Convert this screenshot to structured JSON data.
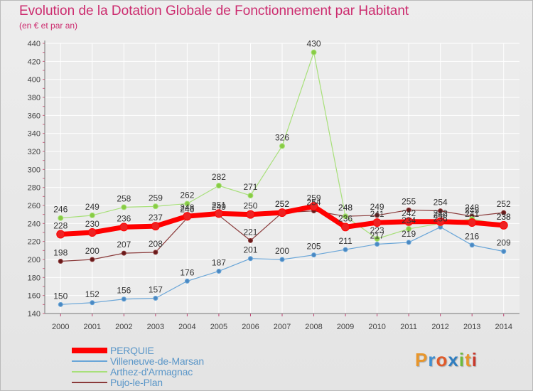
{
  "header": {
    "title": "Evolution de la Dotation Globale de Fonctionnement par Habitant",
    "subtitle": "(en € et par an)"
  },
  "logo": {
    "text": "Proxiti"
  },
  "chart_data": {
    "type": "line",
    "title": "Evolution de la Dotation Globale de Fonctionnement par Habitant",
    "subtitle": "(en € et par an)",
    "xlabel": "",
    "ylabel": "",
    "x": [
      2000,
      2001,
      2002,
      2003,
      2004,
      2005,
      2006,
      2007,
      2008,
      2009,
      2010,
      2011,
      2012,
      2013,
      2014
    ],
    "ylim": [
      140,
      440
    ],
    "yticks": [
      140,
      160,
      180,
      200,
      220,
      240,
      260,
      280,
      300,
      320,
      340,
      360,
      380,
      400,
      420,
      440
    ],
    "grid": true,
    "legend": "bottom-left",
    "series": [
      {
        "name": "PERQUIE",
        "color": "#ff0000",
        "values": [
          228,
          230,
          236,
          237,
          248,
          251,
          250,
          252,
          259,
          236,
          241,
          242,
          242,
          241,
          238
        ],
        "labels": [
          "228",
          "230",
          "236",
          "237",
          "248",
          "251",
          "250",
          "252",
          "259",
          "236",
          "241",
          "242",
          "242",
          "241",
          "238"
        ]
      },
      {
        "name": "Villeneuve-de-Marsan",
        "color": "#5a96c8",
        "values": [
          150,
          152,
          156,
          157,
          176,
          187,
          201,
          200,
          205,
          211,
          217,
          219,
          236,
          216,
          209
        ],
        "labels": [
          "150",
          "152",
          "156",
          "157",
          "176",
          "187",
          "201",
          "200",
          "205",
          "211",
          "217",
          "219",
          "236",
          "216",
          "209"
        ]
      },
      {
        "name": "Arthez-d'Armagnac",
        "color": "#99dd66",
        "values": [
          246,
          249,
          258,
          259,
          262,
          282,
          271,
          326,
          430,
          248,
          223,
          234,
          240,
          245,
          238
        ],
        "labels": [
          "246",
          "249",
          "258",
          "259",
          "262",
          "282",
          "271",
          "326",
          "430",
          "248",
          "223",
          "234",
          "240",
          "245",
          "238"
        ]
      },
      {
        "name": "Pujo-le-Plan",
        "color": "#7a2a2a",
        "values": [
          198,
          200,
          207,
          208,
          246,
          249,
          221,
          252,
          254,
          248,
          249,
          255,
          254,
          248,
          252
        ],
        "labels": [
          "198",
          "200",
          "207",
          "208",
          "246",
          "249",
          "221",
          "252",
          "254",
          "248",
          "249",
          "255",
          "254",
          "248",
          "252"
        ]
      }
    ]
  }
}
